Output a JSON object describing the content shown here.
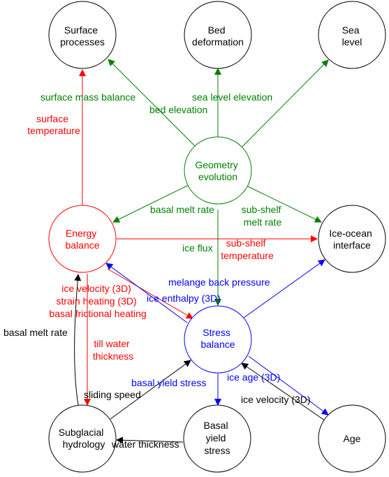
{
  "colors": {
    "black": "#000000",
    "red": "#ff0000",
    "green": "#008000",
    "blue": "#0000ff"
  },
  "nodes": {
    "surface_processes": {
      "lines": [
        "Surface",
        "processes"
      ],
      "color": "#000000"
    },
    "bed_deformation": {
      "lines": [
        "Bed",
        "deformation"
      ],
      "color": "#000000"
    },
    "sea_level": {
      "lines": [
        "Sea",
        "level"
      ],
      "color": "#000000"
    },
    "geometry_evolution": {
      "lines": [
        "Geometry",
        "evolution"
      ],
      "color": "#008000"
    },
    "energy_balance": {
      "lines": [
        "Energy",
        "balance"
      ],
      "color": "#ff0000"
    },
    "ice_ocean_interface": {
      "lines": [
        "Ice-ocean",
        "interface"
      ],
      "color": "#000000"
    },
    "stress_balance": {
      "lines": [
        "Stress",
        "balance"
      ],
      "color": "#0000ff"
    },
    "subglacial_hydrology": {
      "lines": [
        "Subglacial",
        "hydrology"
      ],
      "color": "#000000"
    },
    "basal_yield_stress": {
      "lines": [
        "Basal",
        "yield",
        "stress"
      ],
      "color": "#000000"
    },
    "age": {
      "lines": [
        "Age"
      ],
      "color": "#000000"
    }
  },
  "edge_labels": {
    "surface_mass_balance": "surface mass balance",
    "bed_elevation": "bed elevation",
    "sea_level_elevation": "sea level elevation",
    "surface_temperature": [
      "surface",
      "temperature"
    ],
    "basal_melt_rate_green": "basal melt rate",
    "sub_shelf_melt_rate": [
      "sub-shelf",
      "melt rate"
    ],
    "ice_flux": "ice flux",
    "sub_shelf_temperature": [
      "sub-shelf",
      "temperature"
    ],
    "melange_back_pressure": "melange back pressure",
    "ice_enthalpy": "ice enthalpy (3D)",
    "ice_velocity_red": [
      "ice velocity (3D)",
      "strain heating (3D)",
      "basal frictional heating"
    ],
    "basal_melt_rate_black": "basal melt rate",
    "till_water_thickness": [
      "till water",
      "thickness"
    ],
    "basal_yield_stress": "basal yield stress",
    "ice_age": "ice age (3D)",
    "sliding_speed": "sliding speed",
    "ice_velocity_black": "ice velocity (3D)",
    "water_thickness": "water thickness"
  }
}
